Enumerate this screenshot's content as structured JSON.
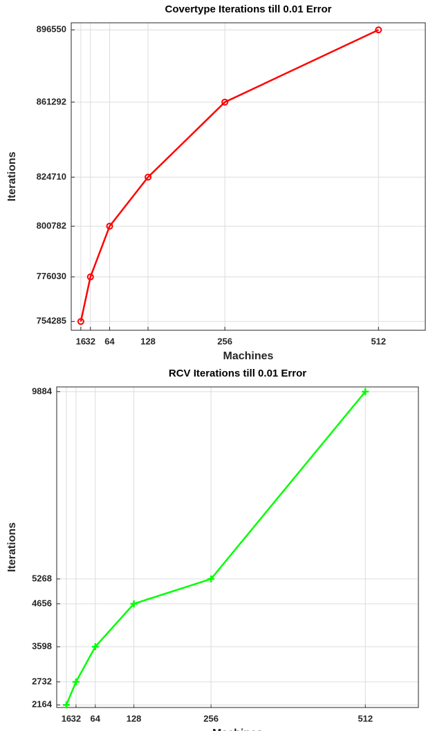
{
  "chart_data": [
    {
      "type": "line",
      "title": "Covertype Iterations till 0.01 Error",
      "x_label": "Machines",
      "y_label": "Iterations",
      "x": [
        16,
        32,
        64,
        128,
        256,
        512
      ],
      "series": [
        {
          "color": "#ff0000",
          "marker": "o",
          "values": [
            754285,
            776030,
            800782,
            824710,
            861292,
            896550
          ]
        }
      ],
      "xlim": [
        0,
        590
      ],
      "ylim": [
        750000,
        900000
      ],
      "xticks": [
        16,
        32,
        64,
        128,
        256,
        512
      ],
      "yticks": [
        754285,
        776030,
        800782,
        824710,
        861292,
        896550
      ],
      "grid": true
    },
    {
      "type": "line",
      "title": "RCV Iterations till 0.01 Error",
      "x_label": "Machines",
      "y_label": "Iterations",
      "x": [
        16,
        32,
        64,
        128,
        256,
        512
      ],
      "series": [
        {
          "color": "#00ff00",
          "marker": "+",
          "values": [
            2164,
            2732,
            3598,
            4656,
            5268,
            9884
          ]
        }
      ],
      "xlim": [
        0,
        600
      ],
      "ylim": [
        2100,
        10000
      ],
      "xticks": [
        16,
        32,
        64,
        128,
        256,
        512
      ],
      "yticks": [
        2164,
        2732,
        3598,
        4656,
        5268,
        9884
      ],
      "grid": true
    }
  ]
}
